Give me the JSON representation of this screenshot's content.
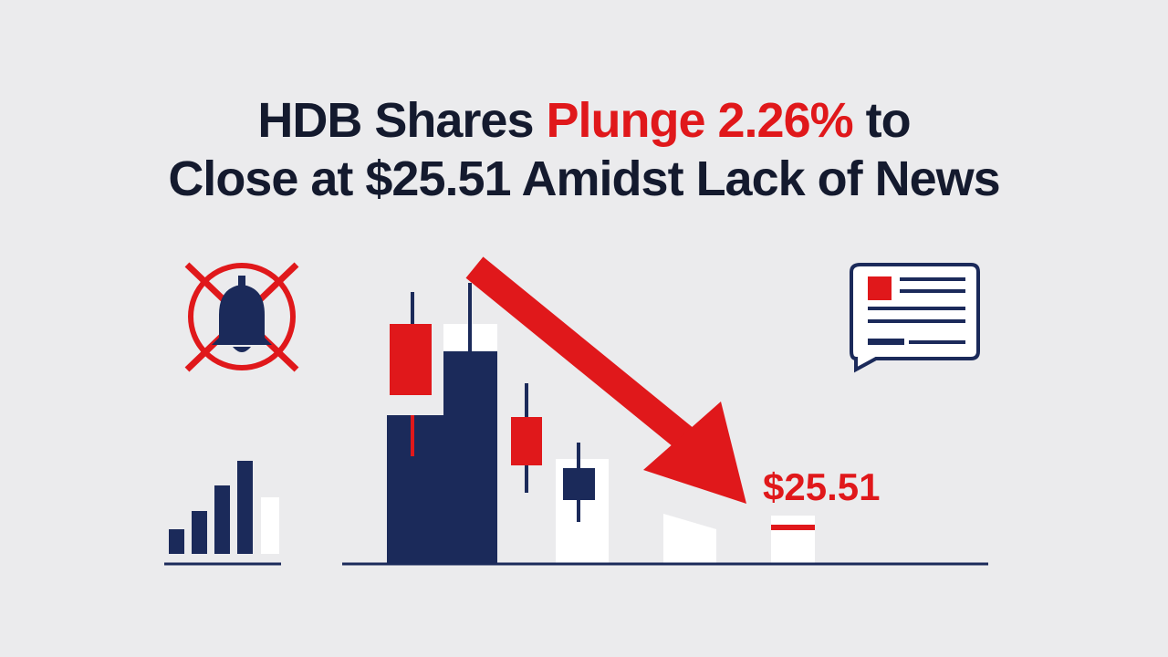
{
  "headline": {
    "part1": "HDB Shares",
    "highlight": "Plunge 2.26%",
    "part2": "to",
    "line2": "Close at $25.51 Amidst Lack of News"
  },
  "price_label": "$25.51"
}
